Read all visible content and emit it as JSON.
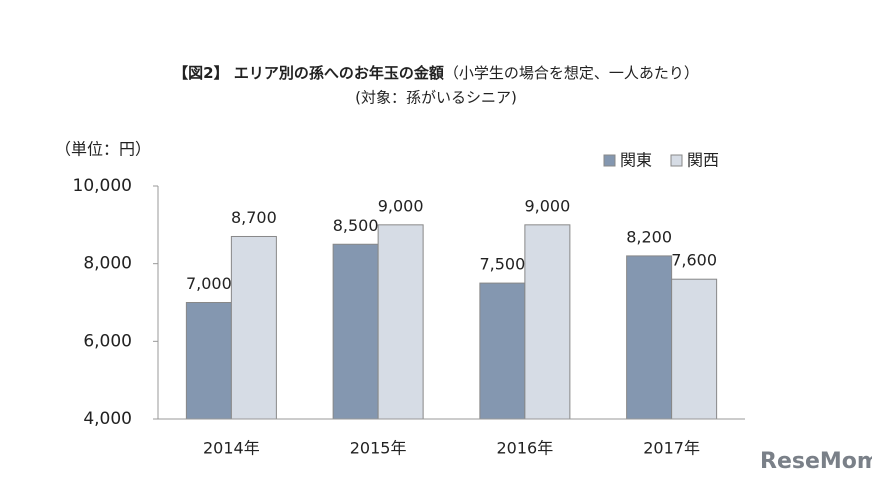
{
  "chart_data": {
    "type": "bar",
    "title": "【図2】 エリア別の孫へのお年玉の金額",
    "title_note": "（小学生の場合を想定、一人あたり）",
    "subtitle": "(対象：孫がいるシニア)",
    "y_label": "（単位：円）",
    "categories": [
      "2014年",
      "2015年",
      "2016年",
      "2017年"
    ],
    "series": [
      {
        "name": "関東",
        "color": "#8497b0",
        "values": [
          7000,
          8500,
          7500,
          8200
        ],
        "value_labels": [
          "7,000",
          "8,500",
          "7,500",
          "8,200"
        ]
      },
      {
        "name": "関西",
        "color": "#d6dce5",
        "values": [
          8700,
          9000,
          9000,
          7600
        ],
        "value_labels": [
          "8,700",
          "9,000",
          "9,000",
          "7,600"
        ]
      }
    ],
    "ylim": [
      4000,
      10000
    ],
    "yticks": [
      {
        "value": 4000,
        "label": "4,000"
      },
      {
        "value": 6000,
        "label": "6,000"
      },
      {
        "value": 8000,
        "label": "8,000"
      },
      {
        "value": 10000,
        "label": "10,000"
      }
    ],
    "grid": false,
    "legend": "top-right",
    "watermark": "ReseMom"
  }
}
